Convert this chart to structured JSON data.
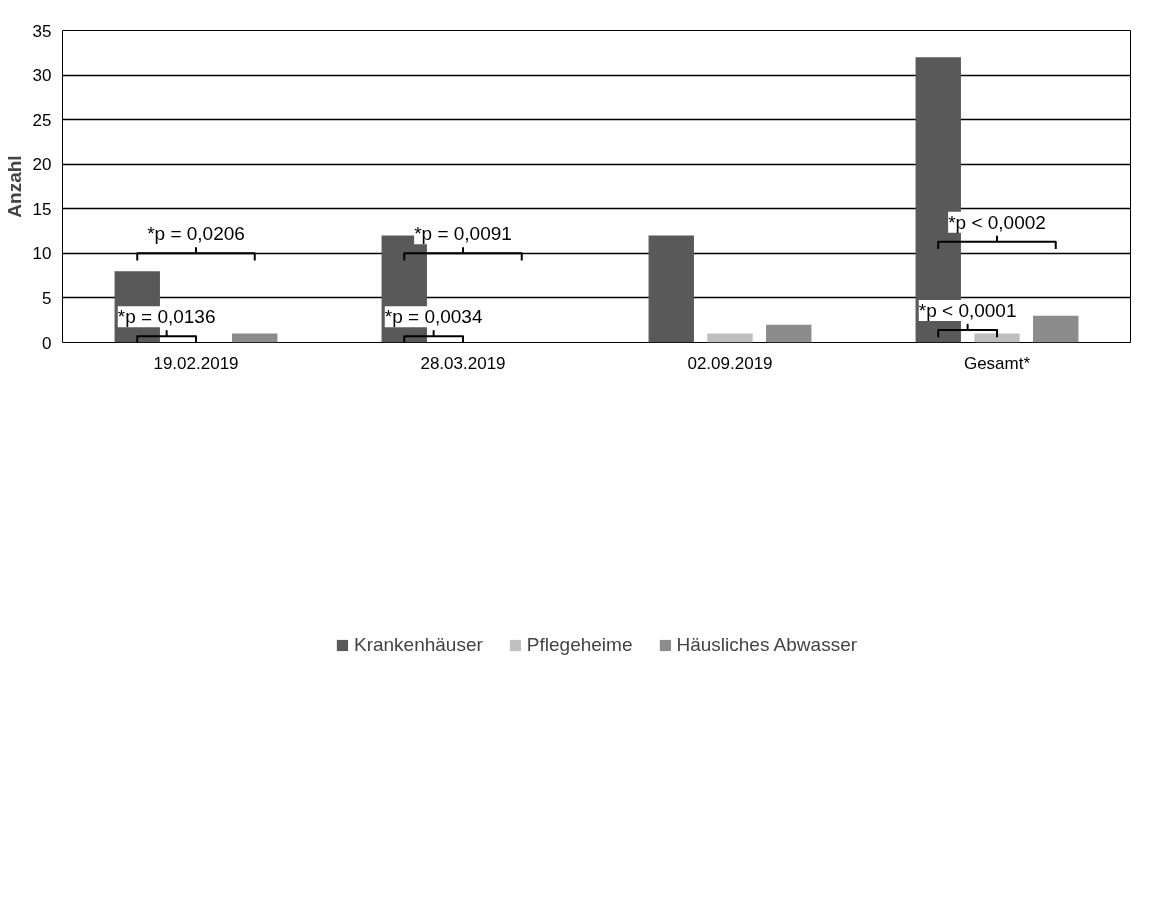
{
  "chart_data": {
    "type": "bar",
    "ylabel": "Anzahl",
    "categories": [
      "19.02.2019",
      "28.03.2019",
      "02.09.2019",
      "Gesamt*"
    ],
    "series": [
      {
        "name": "Krankenhäuser",
        "color": "#595959",
        "values": [
          8,
          12,
          12,
          32
        ]
      },
      {
        "name": "Pflegeheime",
        "color": "#bfbfbf",
        "values": [
          0,
          0,
          1,
          1
        ]
      },
      {
        "name": "Häusliches Abwasser",
        "color": "#8c8c8c",
        "values": [
          1,
          0,
          2,
          3
        ]
      }
    ],
    "ylim": [
      0,
      35
    ],
    "yticks": [
      0,
      5,
      10,
      15,
      20,
      25,
      30,
      35
    ],
    "grid": "y",
    "legend": "bottom",
    "annotations": [
      "*p = 0,0206",
      "*p = 0,0136",
      "*p = 0,0091",
      "*p = 0,0034",
      "*p < 0,0002",
      "*p < 0,0001"
    ]
  }
}
